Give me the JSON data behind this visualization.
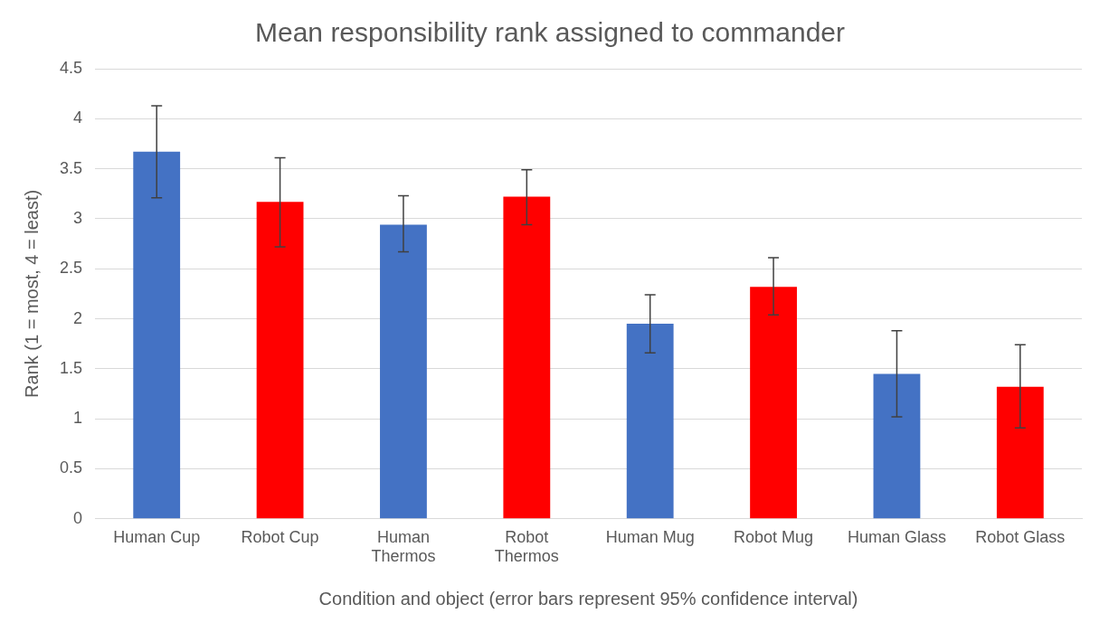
{
  "chart_data": {
    "type": "bar",
    "title": "Mean responsibility rank assigned to commander",
    "xlabel": "Condition and object (error bars represent 95% confidence interval)",
    "ylabel": "Rank (1 = most, 4 = least)",
    "categories": [
      "Human Cup",
      "Robot Cup",
      "Human Thermos",
      "Robot Thermos",
      "Human Mug",
      "Robot Mug",
      "Human Glass",
      "Robot Glass"
    ],
    "values": [
      3.67,
      3.17,
      2.94,
      3.22,
      1.95,
      2.32,
      1.45,
      1.32
    ],
    "colors": [
      "#4472c4",
      "#ff0000",
      "#4472c4",
      "#ff0000",
      "#4472c4",
      "#ff0000",
      "#4472c4",
      "#ff0000"
    ],
    "errors": [
      [
        3.21,
        4.13
      ],
      [
        2.72,
        3.61
      ],
      [
        2.67,
        3.23
      ],
      [
        2.94,
        3.49
      ],
      [
        1.66,
        2.24
      ],
      [
        2.04,
        2.61
      ],
      [
        1.02,
        1.88
      ],
      [
        0.91,
        1.74
      ]
    ],
    "ylim": [
      0,
      4.5
    ],
    "yticks": [
      0,
      0.5,
      1,
      1.5,
      2,
      2.5,
      3,
      3.5,
      4,
      4.5
    ],
    "grid": "y",
    "legend": false
  }
}
